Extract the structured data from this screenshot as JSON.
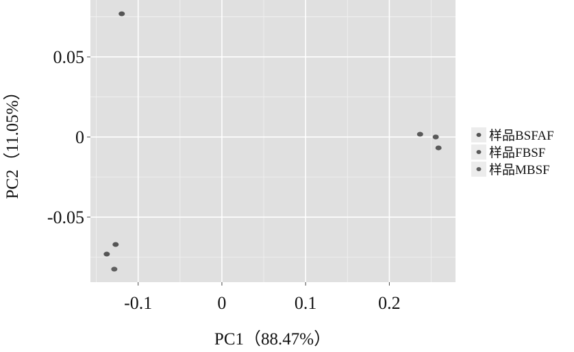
{
  "chart_data": {
    "type": "scatter",
    "title": "",
    "xlabel": "PC1（88.47%）",
    "ylabel": "PC2（11.05%）",
    "xlim": [
      -0.157,
      0.279
    ],
    "ylim": [
      -0.0906,
      0.0855
    ],
    "xticks": [
      -0.1,
      0,
      0.1,
      0.2
    ],
    "xtick_labels": [
      "-0.1",
      "0",
      "0.1",
      "0.2"
    ],
    "yticks": [
      0.05,
      0,
      -0.05
    ],
    "ytick_labels": [
      "0.05",
      "0",
      "-0.05"
    ],
    "grid": true,
    "legend_position": "right",
    "series": [
      {
        "name": "样品BSFAF",
        "color": "#555555",
        "points": [
          [
            -0.1196,
            0.0769
          ],
          [
            -0.1269,
            -0.0671
          ],
          [
            -0.1375,
            -0.0731
          ]
        ]
      },
      {
        "name": "样品FBSF",
        "color": "#5a5a5a",
        "points": [
          [
            0.2367,
            0.0017
          ],
          [
            0.2554,
            0.0
          ],
          [
            0.2587,
            -0.0068
          ]
        ]
      },
      {
        "name": "样品MBSF",
        "color": "#606060",
        "points": [
          [
            -0.1285,
            -0.0825
          ]
        ]
      }
    ]
  }
}
